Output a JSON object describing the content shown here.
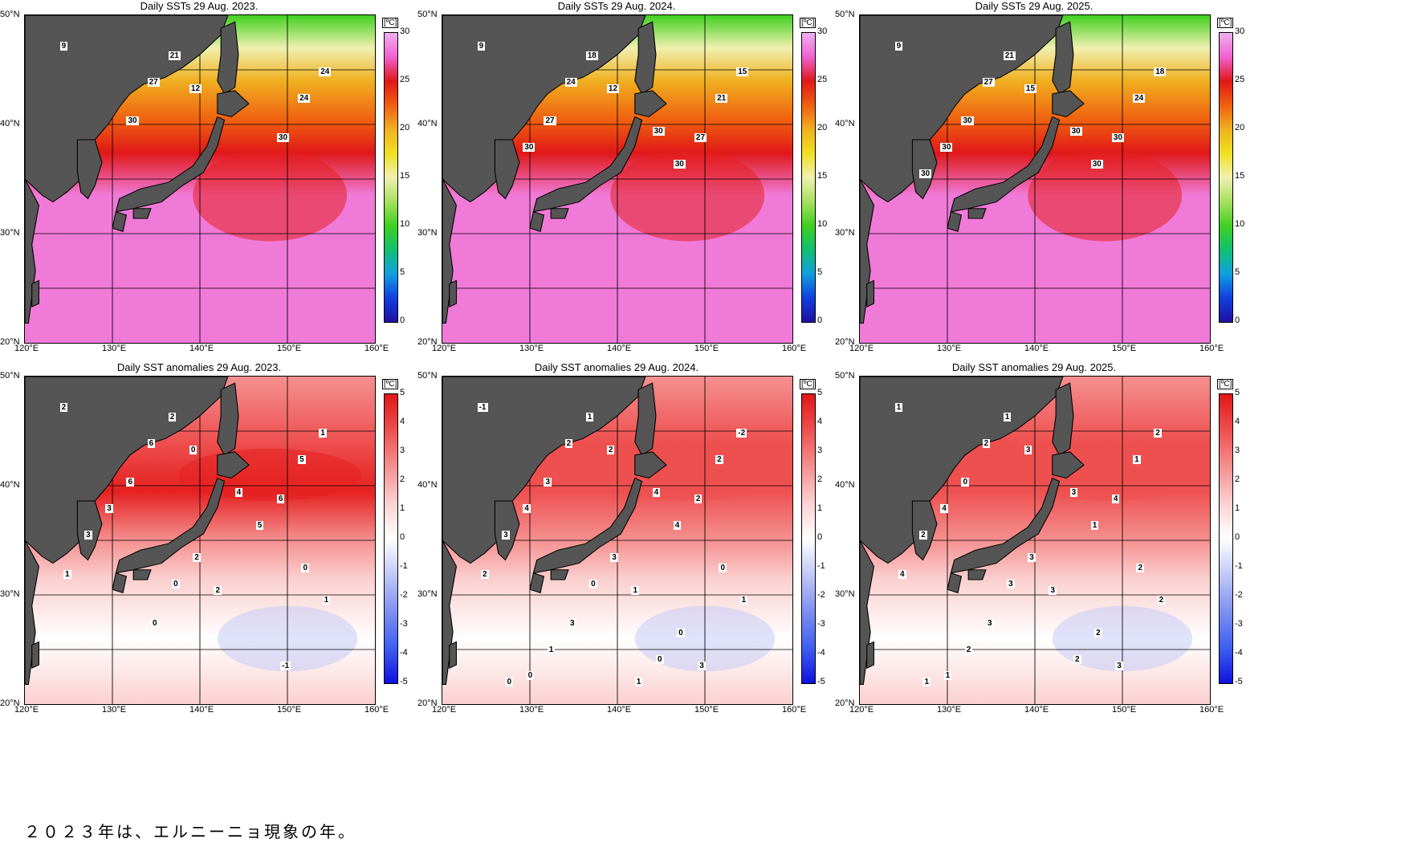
{
  "colors": {
    "land": "#555555",
    "sst_scale": [
      "#2010a0",
      "#1040e0",
      "#10a0e0",
      "#10c070",
      "#40d020",
      "#a8e060",
      "#f0f0b0",
      "#f0e020",
      "#f0b020",
      "#f06010",
      "#e01818",
      "#f060d0",
      "#f0b0f0"
    ],
    "anom_scale": [
      "#1010e0",
      "#4060f0",
      "#8090f0",
      "#c0c8f8",
      "#ffffff",
      "#fbd0d0",
      "#f59090",
      "#ee5050",
      "#e01818"
    ]
  },
  "panels": [
    {
      "title": "Daily SSTs 29 Aug. 2023.",
      "kind": "sst",
      "unit": "[ºC]",
      "ticks": [
        "30",
        "25",
        "20",
        "15",
        "10",
        "5",
        "0"
      ],
      "contour_labels": [
        "9",
        "12",
        "24",
        "21",
        "24",
        "27",
        "30",
        "30"
      ],
      "base": "#f07ad8",
      "warm_band": "#e52020"
    },
    {
      "title": "Daily SSTs 29 Aug. 2024.",
      "kind": "sst",
      "unit": "[ºC]",
      "ticks": [
        "30",
        "25",
        "20",
        "15",
        "10",
        "5",
        "0"
      ],
      "contour_labels": [
        "9",
        "12",
        "15",
        "18",
        "21",
        "24",
        "27",
        "27",
        "30",
        "30",
        "30"
      ],
      "base": "#f07ad8",
      "warm_band": "#e52020"
    },
    {
      "title": "Daily SSTs 29 Aug. 2025.",
      "kind": "sst",
      "unit": "[ºC]",
      "ticks": [
        "30",
        "25",
        "20",
        "15",
        "10",
        "5",
        "0"
      ],
      "contour_labels": [
        "9",
        "15",
        "18",
        "21",
        "24",
        "27",
        "30",
        "30",
        "30",
        "30",
        "30",
        "30"
      ],
      "base": "#f07ad8",
      "warm_band": "#e52020"
    },
    {
      "title": "Daily SST anomalies 29 Aug. 2023.",
      "kind": "anom",
      "unit": "[ºC]",
      "ticks": [
        "5",
        "4",
        "3",
        "2",
        "1",
        "0",
        "-1",
        "-2",
        "-3",
        "-4",
        "-5"
      ],
      "contour_labels": [
        "2",
        "0",
        "1",
        "2",
        "5",
        "6",
        "6",
        "6",
        "5",
        "3",
        "4",
        "3",
        "2",
        "1",
        "2",
        "1",
        "0",
        "0",
        "0",
        "-1"
      ],
      "base": "#ffffff",
      "warm_band": "#e52020"
    },
    {
      "title": "Daily SST anomalies 29 Aug. 2024.",
      "kind": "anom",
      "unit": "[ºC]",
      "ticks": [
        "5",
        "4",
        "3",
        "2",
        "1",
        "0",
        "-1",
        "-2",
        "-3",
        "-4",
        "-5"
      ],
      "contour_labels": [
        "-1",
        "2",
        "-2",
        "1",
        "2",
        "2",
        "2",
        "3",
        "4",
        "4",
        "4",
        "3",
        "1",
        "2",
        "3",
        "1",
        "0",
        "0",
        "3",
        "3",
        "1",
        "0",
        "0",
        "0",
        "0",
        "1"
      ],
      "base": "#ffffff",
      "warm_band": "#ee5050"
    },
    {
      "title": "Daily SST anomalies 29 Aug. 2025.",
      "kind": "anom",
      "unit": "[ºC]",
      "ticks": [
        "5",
        "4",
        "3",
        "2",
        "1",
        "0",
        "-1",
        "-2",
        "-3",
        "-4",
        "-5"
      ],
      "contour_labels": [
        "1",
        "3",
        "2",
        "1",
        "1",
        "2",
        "4",
        "0",
        "1",
        "4",
        "3",
        "2",
        "3",
        "4",
        "3",
        "2",
        "3",
        "2",
        "3",
        "3",
        "2",
        "2",
        "1",
        "2",
        "1"
      ],
      "base": "#ffffff",
      "warm_band": "#ee5050"
    }
  ],
  "lon_labels": [
    "120°E",
    "130°E",
    "140°E",
    "150°E",
    "160°E"
  ],
  "lat_labels": [
    "50°N",
    "40°N",
    "30°N",
    "20°N"
  ],
  "footnote": "２０２３年は、エルニーニョ現象の年。"
}
